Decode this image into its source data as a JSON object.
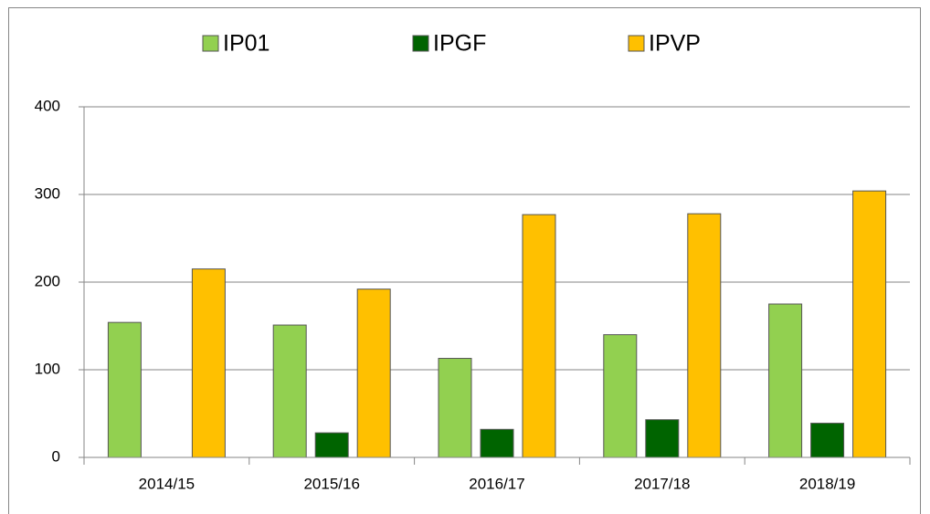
{
  "chart_data": {
    "type": "bar",
    "categories": [
      "2014/15",
      "2015/16",
      "2016/17",
      "2017/18",
      "2018/19"
    ],
    "series": [
      {
        "name": "IP01",
        "color": "#92d050",
        "values": [
          154,
          151,
          113,
          140,
          175
        ]
      },
      {
        "name": "IPGF",
        "color": "#006400",
        "values": [
          0,
          28,
          32,
          43,
          39
        ]
      },
      {
        "name": "IPVP",
        "color": "#ffc000",
        "values": [
          215,
          192,
          277,
          278,
          304
        ]
      }
    ],
    "ylim": [
      0,
      400
    ],
    "yticks": [
      0,
      100,
      200,
      300,
      400
    ],
    "grid": true,
    "legend": "top"
  }
}
